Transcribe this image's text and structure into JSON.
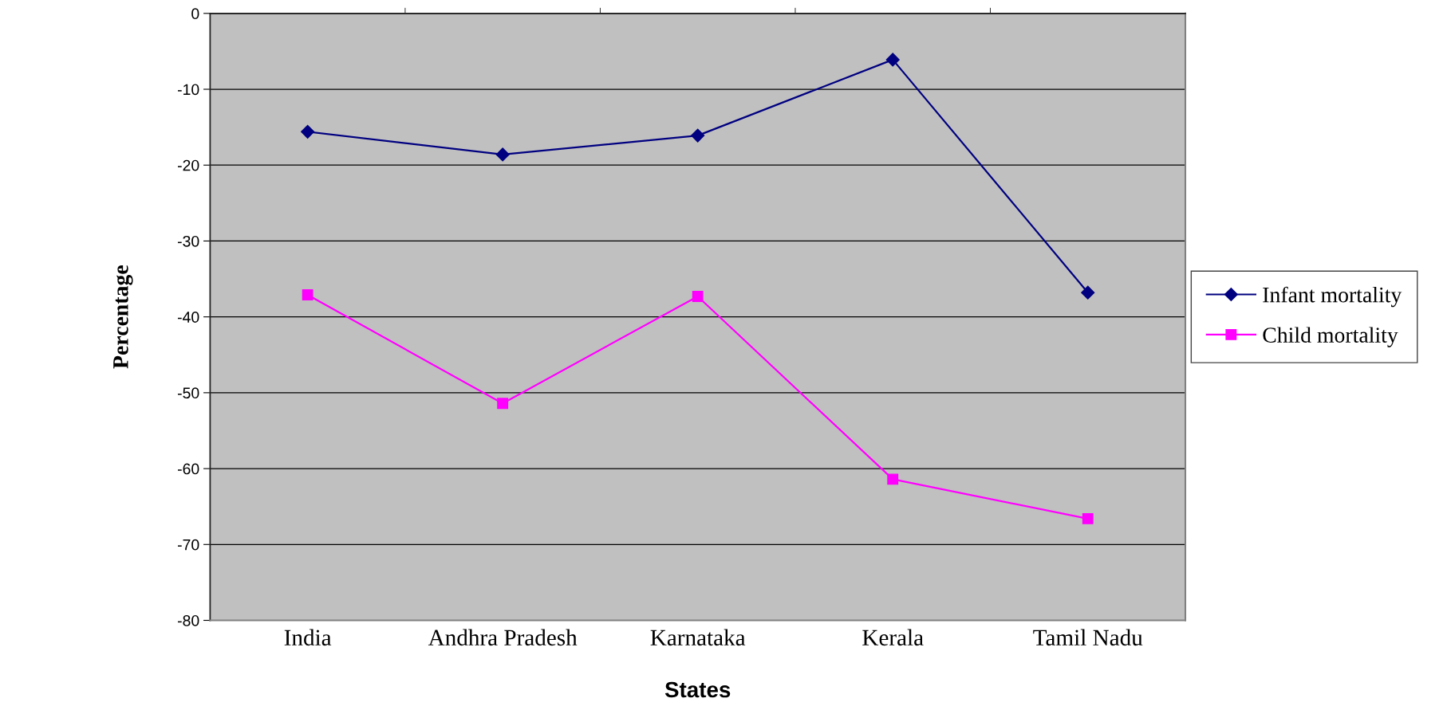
{
  "chart_data": {
    "type": "line",
    "xlabel": "States",
    "ylabel": "Percentage",
    "categories": [
      "India",
      "Andhra Pradesh",
      "Karnataka",
      "Kerala",
      "Tamil Nadu"
    ],
    "series": [
      {
        "name": "Infant mortality",
        "color": "#000080",
        "marker": "diamond",
        "values": [
          -15.6,
          -18.6,
          -16.1,
          -6.1,
          -36.8
        ]
      },
      {
        "name": "Child mortality",
        "color": "#ff00ff",
        "marker": "square",
        "values": [
          -37.1,
          -51.4,
          -37.3,
          -61.4,
          -66.6
        ]
      }
    ],
    "ylim": [
      -80,
      0
    ],
    "yticks": [
      0,
      -10,
      -20,
      -30,
      -40,
      -50,
      -60,
      -70,
      -80
    ],
    "grid": "y",
    "legend": "right",
    "line_style": "solid"
  }
}
